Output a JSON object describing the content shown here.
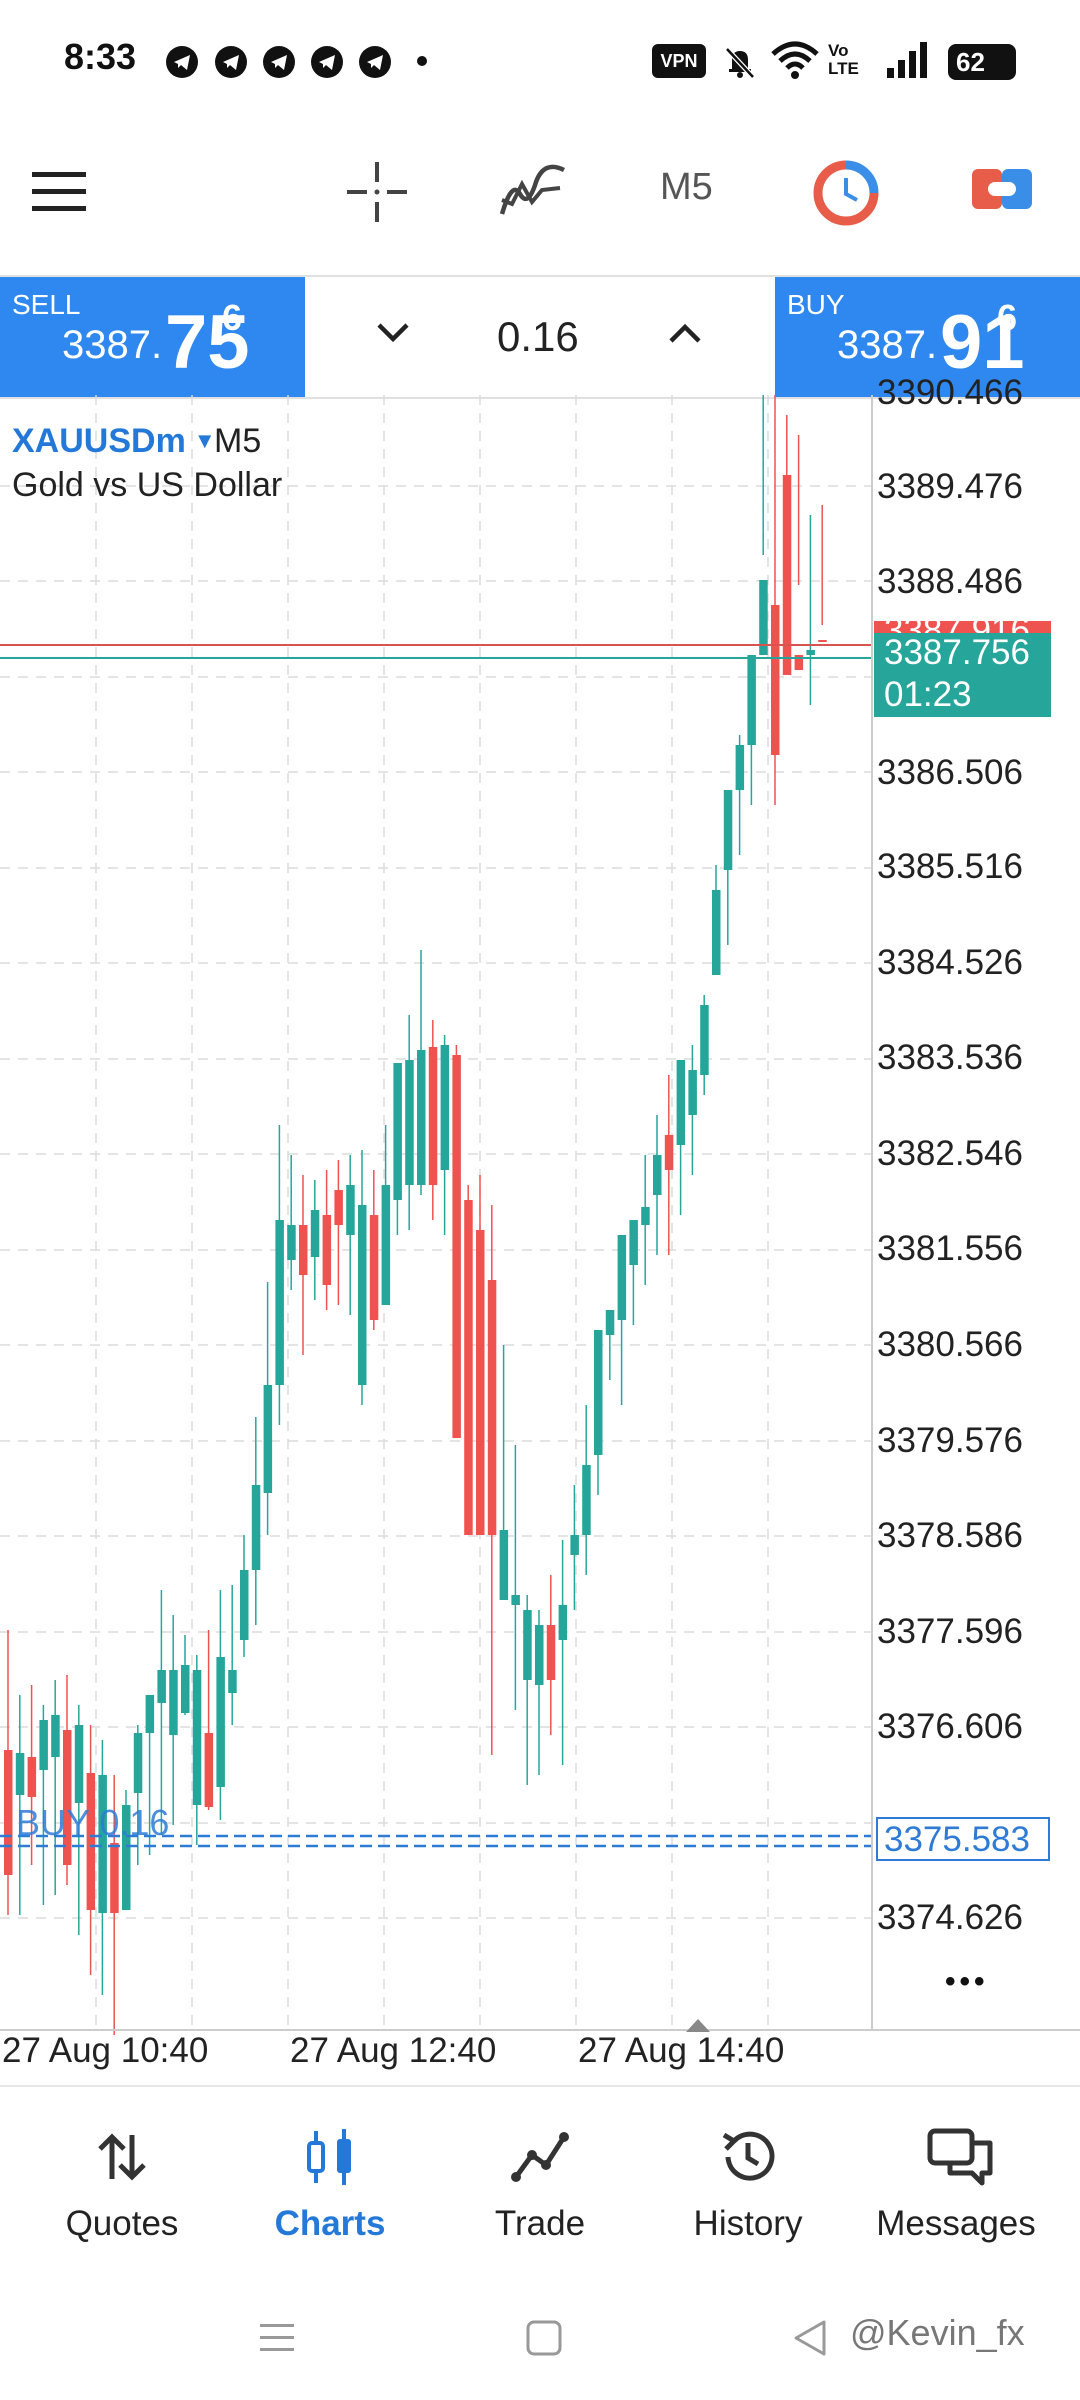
{
  "status_bar": {
    "time": "8:33",
    "vpn": "VPN",
    "network": "Vo LTE",
    "battery": "62",
    "icons": [
      "telegram-icon",
      "telegram-icon",
      "telegram-icon",
      "telegram-icon",
      "telegram-icon",
      "dot-icon",
      "vpn-icon",
      "bell-off-icon",
      "wifi-icon",
      "volte-icon",
      "signal-icon",
      "battery-icon"
    ]
  },
  "toolbar": {
    "timeframe": "M5",
    "icons": [
      "menu-icon",
      "crosshair-icon",
      "indicators-icon",
      "timeframe",
      "clock-icon",
      "trade-toggle-icon"
    ]
  },
  "trade_panel": {
    "sell_label": "SELL",
    "sell_small": "3387.",
    "sell_big": "75",
    "sell_sup": "6",
    "buy_label": "BUY",
    "buy_small": "3387.",
    "buy_big": "91",
    "buy_sup": "6",
    "lot": "0.16"
  },
  "chart": {
    "symbol": "XAUUSDm",
    "timeframe": "M5",
    "description": "Gold vs US Dollar",
    "price_labels": [
      "3390.466",
      "3389.476",
      "3388.486",
      "3386.506",
      "3385.516",
      "3384.526",
      "3383.536",
      "3382.546",
      "3381.556",
      "3380.566",
      "3379.576",
      "3378.586",
      "3377.596",
      "3376.606",
      "3374.626"
    ],
    "ask_tag": "3387.916",
    "bid_tag": "3387.756",
    "countdown": "01:23",
    "position_label": "BUY 0.16",
    "position_price": "3375.583",
    "time_labels": [
      "27 Aug 10:40",
      "27 Aug 12:40",
      "27 Aug 14:40"
    ],
    "more": "•••",
    "colors": {
      "bull": "#26a69a",
      "bear": "#ef5350",
      "grid": "#dcdcdc",
      "ask_line": "#d9534f",
      "bid_line": "#26a69a",
      "position_line": "#2e7bd6"
    }
  },
  "bottom_nav": [
    {
      "label": "Quotes",
      "icon": "quotes-icon"
    },
    {
      "label": "Charts",
      "icon": "charts-icon"
    },
    {
      "label": "Trade",
      "icon": "trade-icon"
    },
    {
      "label": "History",
      "icon": "history-icon"
    },
    {
      "label": "Messages",
      "icon": "messages-icon"
    }
  ],
  "system_nav": {
    "watermark": "@Kevin_fx",
    "icons": [
      "recents-icon",
      "home-icon",
      "back-icon"
    ]
  }
}
